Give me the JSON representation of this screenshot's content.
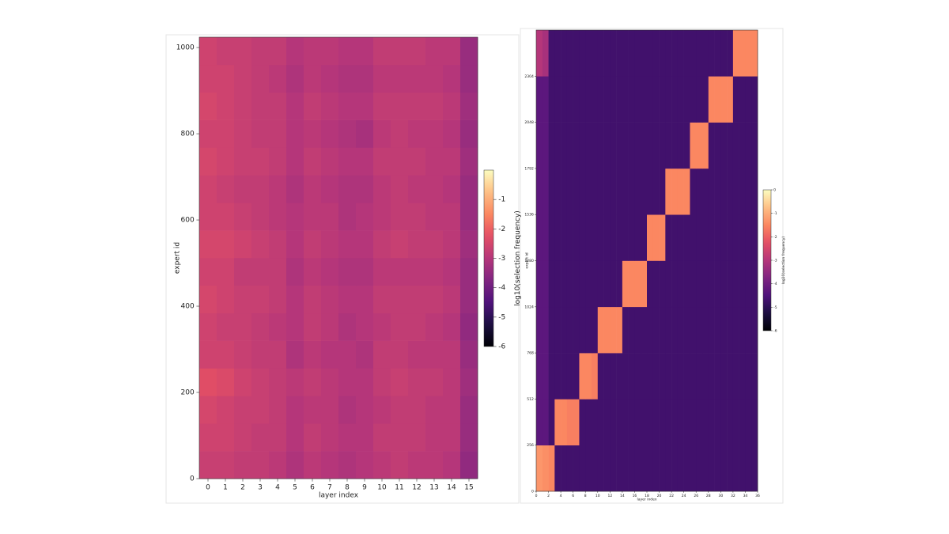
{
  "chart_data": [
    {
      "type": "heatmap",
      "colormap": "magma",
      "xlabel": "layer index",
      "ylabel": "expert id",
      "colorbar_label": "log10(selection frequency)",
      "xlim": [
        -0.5,
        15.5
      ],
      "xticks": [
        0,
        1,
        2,
        3,
        4,
        5,
        6,
        7,
        8,
        9,
        10,
        11,
        12,
        13,
        14,
        15
      ],
      "ylim": [
        0,
        1024
      ],
      "yticks": [
        0,
        200,
        400,
        600,
        800,
        1000
      ],
      "clim": [
        -6,
        0
      ],
      "cticks": [
        -1,
        -2,
        -3,
        -4,
        -5,
        -6
      ],
      "z": [
        [
          -2.7,
          -2.7,
          -2.8,
          -2.8,
          -2.9,
          -3.1,
          -2.9,
          -3.0,
          -3.1,
          -3.0,
          -2.9,
          -2.8,
          -2.9,
          -2.9,
          -3.0,
          -3.5
        ],
        [
          -2.6,
          -2.6,
          -2.7,
          -2.8,
          -2.8,
          -3.0,
          -2.8,
          -2.9,
          -3.0,
          -3.0,
          -2.8,
          -2.8,
          -2.8,
          -2.9,
          -2.9,
          -3.4
        ],
        [
          -2.5,
          -2.6,
          -2.7,
          -2.7,
          -2.8,
          -3.0,
          -2.9,
          -2.9,
          -3.1,
          -3.0,
          -2.9,
          -2.8,
          -2.8,
          -2.9,
          -2.9,
          -3.4
        ],
        [
          -2.3,
          -2.4,
          -2.6,
          -2.7,
          -2.8,
          -2.9,
          -2.8,
          -2.9,
          -3.0,
          -3.0,
          -2.8,
          -2.7,
          -2.8,
          -2.8,
          -2.9,
          -3.3
        ],
        [
          -2.6,
          -2.6,
          -2.7,
          -2.8,
          -2.8,
          -3.1,
          -2.9,
          -3.0,
          -3.0,
          -3.1,
          -2.8,
          -2.8,
          -2.9,
          -2.9,
          -2.9,
          -3.4
        ],
        [
          -2.6,
          -2.7,
          -2.7,
          -2.8,
          -2.9,
          -3.0,
          -2.8,
          -2.9,
          -3.1,
          -3.0,
          -2.9,
          -2.8,
          -2.8,
          -2.9,
          -3.0,
          -3.5
        ],
        [
          -2.5,
          -2.6,
          -2.7,
          -2.7,
          -2.8,
          -3.0,
          -2.8,
          -2.9,
          -3.0,
          -3.0,
          -2.8,
          -2.8,
          -2.8,
          -2.8,
          -2.9,
          -3.4
        ],
        [
          -2.6,
          -2.6,
          -2.8,
          -2.8,
          -2.8,
          -3.1,
          -2.9,
          -3.0,
          -3.1,
          -3.1,
          -2.9,
          -2.9,
          -2.9,
          -2.9,
          -3.0,
          -3.4
        ],
        [
          -2.5,
          -2.5,
          -2.6,
          -2.7,
          -2.8,
          -3.0,
          -2.8,
          -2.9,
          -3.0,
          -3.0,
          -2.8,
          -2.7,
          -2.8,
          -2.8,
          -2.9,
          -3.3
        ],
        [
          -2.6,
          -2.6,
          -2.7,
          -2.8,
          -2.9,
          -3.0,
          -2.9,
          -2.9,
          -3.1,
          -3.0,
          -2.9,
          -2.8,
          -2.8,
          -2.9,
          -2.9,
          -3.4
        ],
        [
          -2.6,
          -2.7,
          -2.8,
          -2.8,
          -2.9,
          -3.1,
          -2.9,
          -3.0,
          -3.1,
          -3.1,
          -2.9,
          -2.8,
          -2.9,
          -2.9,
          -3.0,
          -3.4
        ],
        [
          -2.5,
          -2.6,
          -2.7,
          -2.7,
          -2.8,
          -3.0,
          -2.8,
          -2.9,
          -3.0,
          -3.0,
          -2.8,
          -2.8,
          -2.8,
          -2.9,
          -2.9,
          -3.3
        ],
        [
          -2.6,
          -2.6,
          -2.7,
          -2.8,
          -2.8,
          -3.0,
          -2.9,
          -3.0,
          -3.1,
          -3.2,
          -2.9,
          -2.8,
          -2.9,
          -2.9,
          -3.0,
          -3.4
        ],
        [
          -2.5,
          -2.6,
          -2.7,
          -2.8,
          -2.8,
          -3.0,
          -2.8,
          -2.9,
          -3.0,
          -3.0,
          -2.8,
          -2.8,
          -2.8,
          -2.8,
          -2.9,
          -3.3
        ],
        [
          -2.6,
          -2.6,
          -2.7,
          -2.8,
          -2.9,
          -3.1,
          -2.9,
          -3.0,
          -3.1,
          -3.1,
          -2.9,
          -2.9,
          -2.9,
          -2.9,
          -3.0,
          -3.4
        ],
        [
          -2.6,
          -2.7,
          -2.7,
          -2.8,
          -2.8,
          -3.0,
          -2.9,
          -2.9,
          -3.0,
          -3.0,
          -2.8,
          -2.8,
          -2.8,
          -2.9,
          -2.9,
          -3.4
        ]
      ]
    },
    {
      "type": "heatmap",
      "colormap": "magma",
      "xlabel": "layer index",
      "ylabel": "expert id",
      "colorbar_label": "log10(selection frequency)",
      "xlim": [
        0,
        36
      ],
      "xticks": [
        0,
        2,
        4,
        6,
        8,
        10,
        12,
        14,
        16,
        18,
        20,
        22,
        24,
        26,
        28,
        30,
        32,
        34,
        36
      ],
      "ylim": [
        0,
        2560
      ],
      "yticks": [
        0,
        256,
        512,
        768,
        1024,
        1280,
        1536,
        1792,
        2048,
        2304
      ],
      "clim": [
        -6,
        0
      ],
      "cticks": [
        0,
        -1,
        -2,
        -3,
        -4,
        -5,
        -6
      ],
      "z": [
        [
          -1.3,
          -1.4,
          -1.5,
          -4.7,
          -4.7,
          -4.7,
          -4.7,
          -4.7,
          -4.7,
          -4.7,
          -4.7,
          -4.7,
          -4.7,
          -4.7,
          -4.7,
          -4.7,
          -4.7,
          -4.7,
          -4.7,
          -4.7,
          -4.7,
          -4.7,
          -4.7,
          -4.7,
          -4.7,
          -4.7,
          -4.7,
          -4.7,
          -4.7,
          -4.7,
          -4.7,
          -4.7,
          -4.7,
          -4.7,
          -4.7,
          -4.7
        ],
        [
          -4.3,
          -4.3,
          -4.7,
          -1.5,
          -1.5,
          -1.6,
          -1.6,
          -4.7,
          -4.7,
          -4.7,
          -4.7,
          -4.7,
          -4.7,
          -4.7,
          -4.7,
          -4.7,
          -4.7,
          -4.7,
          -4.7,
          -4.7,
          -4.7,
          -4.7,
          -4.7,
          -4.7,
          -4.7,
          -4.7,
          -4.7,
          -4.7,
          -4.7,
          -4.7,
          -4.7,
          -4.7,
          -4.7,
          -4.7,
          -4.7,
          -4.7
        ],
        [
          -4.3,
          -4.3,
          -4.7,
          -4.7,
          -4.7,
          -4.7,
          -4.7,
          -1.5,
          -1.5,
          -1.6,
          -4.7,
          -4.7,
          -4.7,
          -4.7,
          -4.7,
          -4.7,
          -4.7,
          -4.7,
          -4.7,
          -4.7,
          -4.7,
          -4.7,
          -4.7,
          -4.7,
          -4.7,
          -4.7,
          -4.7,
          -4.7,
          -4.7,
          -4.7,
          -4.7,
          -4.7,
          -4.7,
          -4.7,
          -4.7,
          -4.7
        ],
        [
          -4.3,
          -4.3,
          -4.7,
          -4.7,
          -4.7,
          -4.7,
          -4.7,
          -4.7,
          -4.7,
          -4.7,
          -1.5,
          -1.5,
          -1.5,
          -1.5,
          -4.7,
          -4.7,
          -4.7,
          -4.7,
          -4.7,
          -4.7,
          -4.7,
          -4.7,
          -4.7,
          -4.7,
          -4.7,
          -4.7,
          -4.7,
          -4.7,
          -4.7,
          -4.7,
          -4.7,
          -4.7,
          -4.7,
          -4.7,
          -4.7,
          -4.7
        ],
        [
          -4.3,
          -4.3,
          -4.7,
          -4.7,
          -4.7,
          -4.7,
          -4.7,
          -4.7,
          -4.7,
          -4.7,
          -4.7,
          -4.7,
          -4.7,
          -4.7,
          -1.5,
          -1.5,
          -1.5,
          -1.5,
          -4.7,
          -4.7,
          -4.7,
          -4.7,
          -4.7,
          -4.7,
          -4.7,
          -4.7,
          -4.7,
          -4.7,
          -4.7,
          -4.7,
          -4.7,
          -4.7,
          -4.7,
          -4.7,
          -4.7,
          -4.7
        ],
        [
          -4.3,
          -4.3,
          -4.7,
          -4.7,
          -4.7,
          -4.7,
          -4.7,
          -4.7,
          -4.7,
          -4.7,
          -4.7,
          -4.7,
          -4.7,
          -4.7,
          -4.7,
          -4.7,
          -4.7,
          -4.7,
          -1.5,
          -1.5,
          -1.5,
          -4.7,
          -4.7,
          -4.7,
          -4.7,
          -4.7,
          -4.7,
          -4.7,
          -4.7,
          -4.7,
          -4.7,
          -4.7,
          -4.7,
          -4.7,
          -4.7,
          -4.7
        ],
        [
          -4.3,
          -4.3,
          -4.7,
          -4.7,
          -4.7,
          -4.7,
          -4.7,
          -4.7,
          -4.7,
          -4.7,
          -4.7,
          -4.7,
          -4.7,
          -4.7,
          -4.7,
          -4.7,
          -4.7,
          -4.7,
          -4.7,
          -4.7,
          -4.7,
          -1.5,
          -1.5,
          -1.5,
          -1.5,
          -4.7,
          -4.7,
          -4.7,
          -4.7,
          -4.7,
          -4.7,
          -4.7,
          -4.7,
          -4.7,
          -4.7,
          -4.7
        ],
        [
          -4.3,
          -4.3,
          -4.7,
          -4.7,
          -4.7,
          -4.7,
          -4.7,
          -4.7,
          -4.7,
          -4.7,
          -4.7,
          -4.7,
          -4.7,
          -4.7,
          -4.7,
          -4.7,
          -4.7,
          -4.7,
          -4.7,
          -4.7,
          -4.7,
          -4.7,
          -4.7,
          -4.7,
          -4.7,
          -1.5,
          -1.5,
          -1.5,
          -4.7,
          -4.7,
          -4.7,
          -4.7,
          -4.7,
          -4.7,
          -4.7,
          -4.7
        ],
        [
          -4.3,
          -4.3,
          -4.7,
          -4.7,
          -4.7,
          -4.7,
          -4.7,
          -4.7,
          -4.7,
          -4.7,
          -4.7,
          -4.7,
          -4.7,
          -4.7,
          -4.7,
          -4.7,
          -4.7,
          -4.7,
          -4.7,
          -4.7,
          -4.7,
          -4.7,
          -4.7,
          -4.7,
          -4.7,
          -4.7,
          -4.7,
          -4.7,
          -1.5,
          -1.5,
          -1.5,
          -1.5,
          -4.7,
          -4.7,
          -4.7,
          -4.7
        ],
        [
          -3.0,
          -3.2,
          -4.7,
          -4.7,
          -4.7,
          -4.7,
          -4.7,
          -4.7,
          -4.7,
          -4.7,
          -4.7,
          -4.7,
          -4.7,
          -4.7,
          -4.7,
          -4.7,
          -4.7,
          -4.7,
          -4.7,
          -4.7,
          -4.7,
          -4.7,
          -4.7,
          -4.7,
          -4.7,
          -4.7,
          -4.7,
          -4.7,
          -4.7,
          -4.7,
          -4.7,
          -4.7,
          -1.5,
          -1.5,
          -1.5,
          -1.5
        ]
      ]
    }
  ]
}
